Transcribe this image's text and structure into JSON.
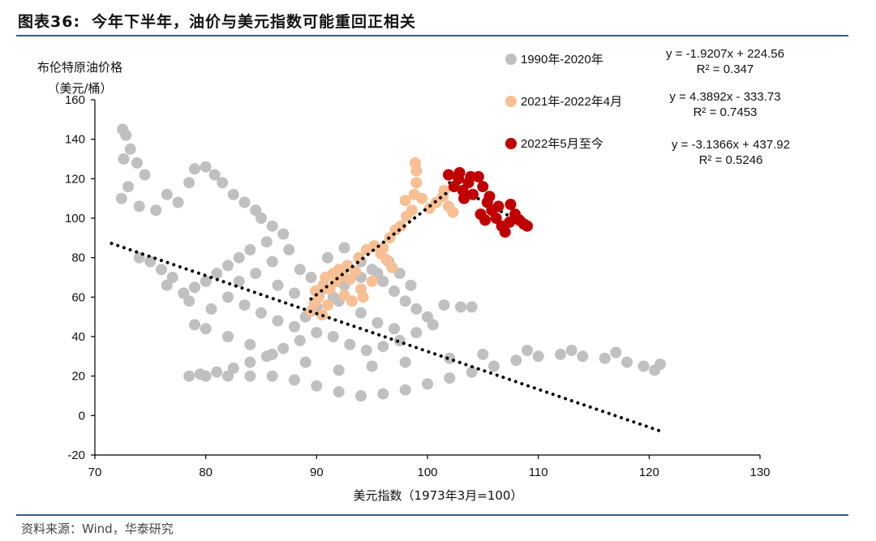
{
  "title": {
    "label": "图表36:",
    "text": "今年下半年，油价与美元指数可能重回正相关"
  },
  "source": "资料来源：Wind，华泰研究",
  "colors": {
    "rule": "#3a5a85",
    "s1990": "#c0c0c0",
    "s2021": "#f7bf93",
    "s2022": "#c00000",
    "trend": "#000000"
  },
  "chart_data": {
    "type": "scatter",
    "xlabel": "美元指数（1973年3月=100）",
    "ylabel": [
      "布伦特原油价格",
      "（美元/桶）"
    ],
    "xlim": [
      70,
      130
    ],
    "ylim": [
      -20,
      160
    ],
    "xticks": [
      70,
      80,
      90,
      100,
      110,
      120,
      130
    ],
    "yticks": [
      -20,
      0,
      20,
      40,
      60,
      80,
      100,
      120,
      140,
      160
    ],
    "grid": false,
    "legend_position": "top-right",
    "series": [
      {
        "name": "1990年-2020年",
        "color": "#c0c0c0",
        "points": [
          [
            72.5,
            145
          ],
          [
            72.8,
            142
          ],
          [
            73.2,
            135
          ],
          [
            72.6,
            130
          ],
          [
            73.8,
            128
          ],
          [
            74.5,
            122
          ],
          [
            73.0,
            116
          ],
          [
            72.4,
            110
          ],
          [
            74.0,
            106
          ],
          [
            75.5,
            104
          ],
          [
            76.5,
            112
          ],
          [
            77.5,
            108
          ],
          [
            78.5,
            118
          ],
          [
            79.0,
            125
          ],
          [
            80.0,
            126
          ],
          [
            80.8,
            122
          ],
          [
            81.5,
            118
          ],
          [
            82.5,
            112
          ],
          [
            83.5,
            108
          ],
          [
            84.5,
            104
          ],
          [
            85.0,
            100
          ],
          [
            86.0,
            96
          ],
          [
            87.0,
            92
          ],
          [
            85.5,
            88
          ],
          [
            84.0,
            84
          ],
          [
            83.0,
            80
          ],
          [
            82.0,
            76
          ],
          [
            81.0,
            72
          ],
          [
            80.0,
            68
          ],
          [
            79.0,
            65
          ],
          [
            78.0,
            62
          ],
          [
            77.0,
            70
          ],
          [
            76.0,
            74
          ],
          [
            75.0,
            78
          ],
          [
            74.0,
            80
          ],
          [
            76.5,
            66
          ],
          [
            78.5,
            58
          ],
          [
            80.5,
            54
          ],
          [
            82.0,
            60
          ],
          [
            83.5,
            56
          ],
          [
            85.0,
            52
          ],
          [
            86.5,
            48
          ],
          [
            88.0,
            45
          ],
          [
            89.0,
            50
          ],
          [
            90.0,
            55
          ],
          [
            91.5,
            60
          ],
          [
            92.5,
            66
          ],
          [
            94.0,
            70
          ],
          [
            95.0,
            74
          ],
          [
            96.0,
            68
          ],
          [
            97.0,
            63
          ],
          [
            98.0,
            58
          ],
          [
            99.0,
            54
          ],
          [
            100.0,
            50
          ],
          [
            101.5,
            56
          ],
          [
            103.0,
            55
          ],
          [
            104.0,
            55
          ],
          [
            100.5,
            46
          ],
          [
            99.0,
            42
          ],
          [
            97.5,
            38
          ],
          [
            96.0,
            35
          ],
          [
            94.5,
            33
          ],
          [
            93.0,
            36
          ],
          [
            91.5,
            40
          ],
          [
            90.0,
            42
          ],
          [
            88.5,
            38
          ],
          [
            87.0,
            34
          ],
          [
            85.5,
            30
          ],
          [
            84.0,
            27
          ],
          [
            82.5,
            24
          ],
          [
            81.0,
            22
          ],
          [
            79.5,
            21
          ],
          [
            78.5,
            20
          ],
          [
            80.0,
            20
          ],
          [
            82.0,
            20
          ],
          [
            84.0,
            20
          ],
          [
            86.0,
            20
          ],
          [
            88.0,
            18
          ],
          [
            90.0,
            15
          ],
          [
            92.0,
            12
          ],
          [
            94.0,
            10
          ],
          [
            96.0,
            11
          ],
          [
            98.0,
            13
          ],
          [
            100.0,
            16
          ],
          [
            102.0,
            19
          ],
          [
            104.0,
            22
          ],
          [
            106.0,
            25
          ],
          [
            108.0,
            28
          ],
          [
            110.0,
            30
          ],
          [
            112.0,
            31
          ],
          [
            114.0,
            30
          ],
          [
            116.0,
            29
          ],
          [
            118.0,
            27
          ],
          [
            119.5,
            25
          ],
          [
            120.5,
            23
          ],
          [
            121.0,
            26
          ],
          [
            117.0,
            32
          ],
          [
            113.0,
            33
          ],
          [
            109.0,
            33
          ],
          [
            105.0,
            31
          ],
          [
            102.0,
            29
          ],
          [
            98.0,
            27
          ],
          [
            95.0,
            25
          ],
          [
            92.0,
            23
          ],
          [
            89.0,
            27
          ],
          [
            86.0,
            31
          ],
          [
            84.0,
            36
          ],
          [
            82.0,
            40
          ],
          [
            80.0,
            44
          ],
          [
            79.0,
            46
          ],
          [
            86.5,
            66
          ],
          [
            88.0,
            62
          ],
          [
            89.5,
            70
          ],
          [
            91.0,
            80
          ],
          [
            92.5,
            85
          ],
          [
            94.0,
            78
          ],
          [
            95.5,
            72
          ],
          [
            96.5,
            78
          ],
          [
            97.5,
            72
          ],
          [
            98.5,
            66
          ],
          [
            87.5,
            84
          ],
          [
            86.0,
            78
          ],
          [
            84.5,
            72
          ],
          [
            83.0,
            68
          ],
          [
            88.5,
            74
          ],
          [
            90.5,
            64
          ],
          [
            92.0,
            58
          ],
          [
            94.0,
            52
          ],
          [
            95.5,
            47
          ],
          [
            97.0,
            44
          ]
        ]
      },
      {
        "name": "2021年-2022年4月",
        "color": "#f7bf93",
        "points": [
          [
            89.5,
            53
          ],
          [
            89.8,
            57
          ],
          [
            90.2,
            60
          ],
          [
            89.9,
            63
          ],
          [
            90.6,
            66
          ],
          [
            91.2,
            64
          ],
          [
            91.8,
            68
          ],
          [
            92.4,
            71
          ],
          [
            93.0,
            69
          ],
          [
            93.5,
            73
          ],
          [
            92.8,
            76
          ],
          [
            92.0,
            74
          ],
          [
            91.5,
            72
          ],
          [
            90.8,
            70
          ],
          [
            93.8,
            80
          ],
          [
            94.5,
            84
          ],
          [
            95.2,
            86
          ],
          [
            95.8,
            82
          ],
          [
            96.3,
            79
          ],
          [
            96.8,
            75
          ],
          [
            96.0,
            85
          ],
          [
            96.6,
            90
          ],
          [
            97.1,
            94
          ],
          [
            97.6,
            96
          ],
          [
            98.1,
            101
          ],
          [
            98.6,
            104
          ],
          [
            98.0,
            109
          ],
          [
            98.8,
            112
          ],
          [
            99.0,
            118
          ],
          [
            99.0,
            124
          ],
          [
            98.9,
            128
          ],
          [
            99.5,
            110
          ],
          [
            100.2,
            105
          ],
          [
            100.8,
            108
          ],
          [
            101.4,
            111
          ],
          [
            101.9,
            106
          ],
          [
            102.3,
            103
          ],
          [
            101.5,
            114
          ],
          [
            92.5,
            61
          ],
          [
            94.0,
            64
          ],
          [
            95.0,
            68
          ],
          [
            94.2,
            60
          ],
          [
            93.2,
            58
          ],
          [
            91.0,
            56
          ],
          [
            90.5,
            51
          ]
        ]
      },
      {
        "name": "2022年5月至今",
        "color": "#c00000",
        "points": [
          [
            101.9,
            122
          ],
          [
            102.4,
            116
          ],
          [
            102.8,
            120
          ],
          [
            103.2,
            114
          ],
          [
            103.7,
            118
          ],
          [
            104.1,
            112
          ],
          [
            104.6,
            121
          ],
          [
            105.0,
            116
          ],
          [
            105.4,
            108
          ],
          [
            105.8,
            104
          ],
          [
            106.2,
            100
          ],
          [
            106.7,
            96
          ],
          [
            107.0,
            93
          ],
          [
            107.4,
            98
          ],
          [
            107.9,
            102
          ],
          [
            108.3,
            99
          ],
          [
            108.7,
            97
          ],
          [
            109.0,
            96
          ],
          [
            106.4,
            106
          ],
          [
            105.2,
            99
          ],
          [
            104.8,
            102
          ],
          [
            103.3,
            110
          ],
          [
            103.9,
            121
          ],
          [
            102.9,
            123
          ],
          [
            105.6,
            111
          ],
          [
            107.5,
            107
          ]
        ]
      }
    ],
    "trendlines": [
      {
        "series": "1990年-2020年",
        "slope": -1.9207,
        "intercept": 224.56,
        "x_range": [
          71.5,
          121
        ],
        "equation": "y = -1.9207x + 224.56",
        "r2": "R² = 0.347"
      },
      {
        "series": "2021年-2022年4月",
        "slope": 4.3892,
        "intercept": -333.73,
        "x_range": [
          89.5,
          102
        ],
        "equation": "y = 4.3892x - 333.73",
        "r2": "R² = 0.7453"
      },
      {
        "series": "2022年5月至今",
        "slope": -3.1366,
        "intercept": 437.92,
        "x_range": [
          102,
          109
        ],
        "equation": "y = -3.1366x + 437.92",
        "r2": "R² = 0.5246"
      }
    ]
  }
}
